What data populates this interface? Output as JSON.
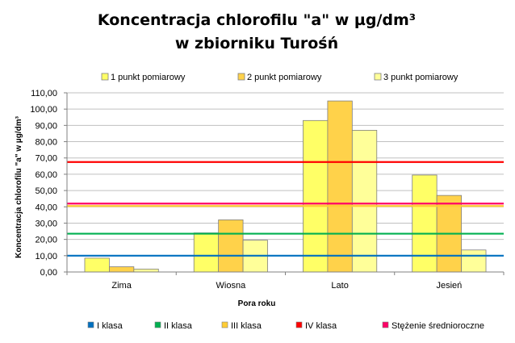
{
  "chart_data": {
    "type": "bar",
    "title_line1": "Koncentracja chlorofilu \"a\" w µg/dm³",
    "title_line2": "w zbiorniku Turośń",
    "xlabel": "Pora roku",
    "ylabel": "Koncentracja  chlorofilu  \"a\"  w  µg/dm³",
    "ylim": [
      0,
      110
    ],
    "ytick_step": 10,
    "ytick_labels": [
      "0,00",
      "10,00",
      "20,00",
      "30,00",
      "40,00",
      "50,00",
      "60,00",
      "70,00",
      "80,00",
      "90,00",
      "100,00",
      "110,00"
    ],
    "grid": true,
    "categories": [
      "Zima",
      "Wiosna",
      "Lato",
      "Jesień"
    ],
    "series": [
      {
        "name": "1 punkt pomiarowy",
        "values": [
          8.5,
          24,
          93,
          59.5
        ],
        "color": "#ffff66"
      },
      {
        "name": "2 punkt pomiarowy",
        "values": [
          3.2,
          32,
          105,
          47
        ],
        "color": "#ffd24a"
      },
      {
        "name": "3 punkt pomiarowy",
        "values": [
          1.8,
          19.5,
          87,
          13.5
        ],
        "color": "#ffff99"
      }
    ],
    "thresholds": [
      {
        "name": "I klasa",
        "value": 10,
        "color": "#0070c0"
      },
      {
        "name": "II klasa",
        "value": 23.5,
        "color": "#00b050"
      },
      {
        "name": "III klasa",
        "value": 40.5,
        "color": "#ffcc33"
      },
      {
        "name": "IV klasa",
        "value": 67.5,
        "color": "#ff0000"
      },
      {
        "name": "Stężenie średnioroczne",
        "value": 42,
        "color": "#ff0066"
      }
    ]
  }
}
